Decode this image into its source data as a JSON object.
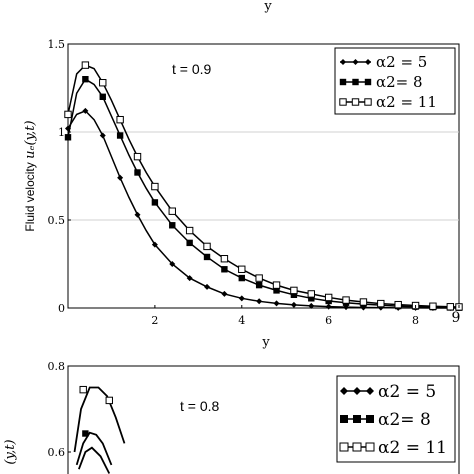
{
  "top_axis_label": "y",
  "chart_data": [
    {
      "type": "line",
      "annotation": "t = 0.9",
      "xlabel": "y",
      "ylabel": "Fluid velocity",
      "ylabel_symbol": "uₑ(y,t)",
      "xlim": [
        0,
        9
      ],
      "ylim": [
        0,
        1.5
      ],
      "x_ticks": [
        {
          "v": 2,
          "label": "2"
        },
        {
          "v": 4,
          "label": "4"
        },
        {
          "v": 6,
          "label": "6"
        },
        {
          "v": 8,
          "label": "8"
        },
        {
          "v": 9,
          "label": "9"
        }
      ],
      "y_ticks": [
        {
          "v": 0,
          "label": "0"
        },
        {
          "v": 0.5,
          "label": "0.5"
        },
        {
          "v": 1,
          "label": "1"
        },
        {
          "v": 1.5,
          "label": "1.5"
        }
      ],
      "series": [
        {
          "name": "α2  = 5",
          "marker": "diamond",
          "x": [
            0,
            0.2,
            0.4,
            0.6,
            0.8,
            1.0,
            1.2,
            1.4,
            1.6,
            1.8,
            2.0,
            2.4,
            2.8,
            3.2,
            3.6,
            4.0,
            4.4,
            4.8,
            5.2,
            5.6,
            6.0,
            6.4,
            6.8,
            7.2,
            7.6,
            8.0,
            8.4,
            8.8,
            9.0
          ],
          "values": [
            1.02,
            1.1,
            1.12,
            1.07,
            0.98,
            0.86,
            0.74,
            0.63,
            0.53,
            0.44,
            0.36,
            0.25,
            0.17,
            0.12,
            0.08,
            0.055,
            0.038,
            0.026,
            0.018,
            0.012,
            0.008,
            0.005,
            0.003,
            0.002,
            0.001,
            0.001,
            0.0,
            0.0,
            0.0
          ]
        },
        {
          "name": "α2= 8",
          "marker": "square-filled",
          "x": [
            0,
            0.2,
            0.4,
            0.6,
            0.8,
            1.0,
            1.2,
            1.4,
            1.6,
            1.8,
            2.0,
            2.4,
            2.8,
            3.2,
            3.6,
            4.0,
            4.4,
            4.8,
            5.2,
            5.6,
            6.0,
            6.4,
            6.8,
            7.2,
            7.6,
            8.0,
            8.4,
            8.8,
            9.0
          ],
          "values": [
            0.97,
            1.22,
            1.3,
            1.27,
            1.2,
            1.09,
            0.98,
            0.87,
            0.77,
            0.68,
            0.6,
            0.47,
            0.37,
            0.29,
            0.22,
            0.17,
            0.13,
            0.1,
            0.075,
            0.055,
            0.04,
            0.03,
            0.022,
            0.016,
            0.011,
            0.008,
            0.005,
            0.003,
            0.002
          ]
        },
        {
          "name": "α2 = 11",
          "marker": "square-open",
          "x": [
            0,
            0.2,
            0.4,
            0.6,
            0.8,
            1.0,
            1.2,
            1.4,
            1.6,
            1.8,
            2.0,
            2.4,
            2.8,
            3.2,
            3.6,
            4.0,
            4.4,
            4.8,
            5.2,
            5.6,
            6.0,
            6.4,
            6.8,
            7.2,
            7.6,
            8.0,
            8.4,
            8.8,
            9.0
          ],
          "values": [
            1.1,
            1.33,
            1.38,
            1.36,
            1.28,
            1.18,
            1.07,
            0.96,
            0.86,
            0.77,
            0.69,
            0.55,
            0.44,
            0.35,
            0.28,
            0.22,
            0.17,
            0.13,
            0.1,
            0.08,
            0.06,
            0.045,
            0.034,
            0.025,
            0.019,
            0.014,
            0.01,
            0.007,
            0.006
          ]
        }
      ]
    },
    {
      "type": "line",
      "annotation": "t = 0.8",
      "ylabel_symbol": "(y,t)",
      "ylim_visible": [
        0.55,
        0.8
      ],
      "y_ticks": [
        {
          "v": 0.6,
          "label": "0.6"
        },
        {
          "v": 0.8,
          "label": "0.8"
        }
      ],
      "series": [
        {
          "name": "α2  = 5",
          "marker": "diamond",
          "x": [
            0.25,
            0.4,
            0.55,
            0.75,
            0.95
          ],
          "values": [
            0.56,
            0.6,
            0.61,
            0.59,
            0.55
          ]
        },
        {
          "name": "α2= 8",
          "marker": "square-filled",
          "x": [
            0.2,
            0.35,
            0.5,
            0.65,
            0.8,
            1.0
          ],
          "values": [
            0.57,
            0.62,
            0.645,
            0.64,
            0.62,
            0.57
          ]
        },
        {
          "name": "α2 = 11",
          "marker": "square-open",
          "x": [
            0.15,
            0.3,
            0.5,
            0.7,
            0.9,
            1.1,
            1.3
          ],
          "values": [
            0.6,
            0.7,
            0.75,
            0.75,
            0.73,
            0.68,
            0.62
          ]
        }
      ]
    }
  ]
}
